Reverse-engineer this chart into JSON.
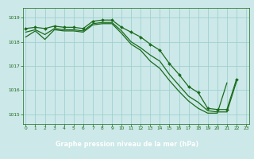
{
  "line_top": {
    "x": [
      0,
      1,
      2,
      3,
      4,
      5,
      6,
      7,
      8,
      9,
      10,
      11,
      12,
      13,
      14,
      15,
      16,
      17,
      18,
      19,
      20,
      21,
      22
    ],
    "y": [
      1018.55,
      1018.6,
      1018.55,
      1018.65,
      1018.6,
      1018.6,
      1018.55,
      1018.85,
      1018.9,
      1018.9,
      1018.6,
      1018.4,
      1018.2,
      1017.9,
      1017.65,
      1017.1,
      1016.65,
      1016.15,
      1015.9,
      1015.25,
      1015.2,
      1015.2,
      1016.45
    ]
  },
  "line_mid": {
    "x": [
      0,
      1,
      2,
      3,
      4,
      5,
      6,
      7,
      8,
      9,
      10,
      11,
      12,
      13,
      14,
      15,
      16,
      17,
      18,
      19,
      20,
      21,
      22
    ],
    "y": [
      1018.4,
      1018.5,
      1018.3,
      1018.55,
      1018.5,
      1018.5,
      1018.45,
      1018.75,
      1018.8,
      1018.8,
      1018.45,
      1018.0,
      1017.75,
      1017.45,
      1017.2,
      1016.65,
      1016.2,
      1015.75,
      1015.5,
      1015.15,
      1015.1,
      1015.1,
      1016.35
    ]
  },
  "line_bot": {
    "x": [
      0,
      1,
      2,
      3,
      4,
      5,
      6,
      7,
      8,
      9,
      10,
      11,
      12,
      13,
      14,
      15,
      16,
      17,
      18,
      19,
      20,
      21
    ],
    "y": [
      1018.2,
      1018.45,
      1018.1,
      1018.5,
      1018.45,
      1018.45,
      1018.4,
      1018.7,
      1018.75,
      1018.75,
      1018.35,
      1017.9,
      1017.65,
      1017.2,
      1016.9,
      1016.4,
      1015.95,
      1015.55,
      1015.25,
      1015.05,
      1015.05,
      1016.3
    ]
  },
  "line_color": "#1a6b1a",
  "bg_color": "#cce8e8",
  "grid_color": "#99cccc",
  "label_bg": "#5aa05a",
  "xlabel": "Graphe pression niveau de la mer (hPa)",
  "xlabel_color": "#ffffff",
  "tick_color": "#1a6b1a",
  "ylim": [
    1014.6,
    1019.4
  ],
  "xlim": [
    -0.3,
    23.3
  ],
  "yticks": [
    1015,
    1016,
    1017,
    1018,
    1019
  ],
  "xticks": [
    0,
    1,
    2,
    3,
    4,
    5,
    6,
    7,
    8,
    9,
    10,
    11,
    12,
    13,
    14,
    15,
    16,
    17,
    18,
    19,
    20,
    21,
    22,
    23
  ]
}
